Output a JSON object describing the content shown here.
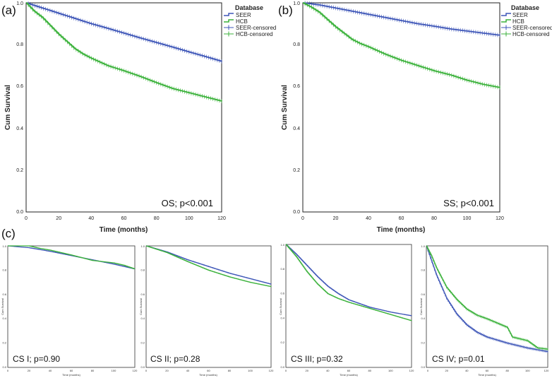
{
  "figure": {
    "panel_labels": [
      "(a)",
      "(b)",
      "(c)"
    ]
  },
  "colors": {
    "seer": "#3f57b8",
    "hcb": "#3cb23c"
  },
  "chart_data": [
    {
      "id": "a",
      "type": "line",
      "title": "(a)",
      "xlabel": "Time (months)",
      "ylabel": "Cum Survival",
      "xlim": [
        0,
        120
      ],
      "ylim": [
        0,
        1.0
      ],
      "xticks": [
        "0",
        "20",
        "40",
        "60",
        "80",
        "100",
        "120"
      ],
      "yticks": [
        "0.0",
        "0.2",
        "0.4",
        "0.6",
        "0.8",
        "1.0"
      ],
      "annotation": "OS; p<0.001",
      "legend": {
        "title": "Database",
        "items": [
          "SEER",
          "HCB",
          "SEER-censored",
          "HCB-censored"
        ],
        "position": "outside-right"
      },
      "series": [
        {
          "name": "SEER",
          "x": [
            0,
            10,
            20,
            30,
            40,
            50,
            60,
            70,
            80,
            90,
            100,
            110,
            120
          ],
          "values": [
            1.0,
            0.975,
            0.95,
            0.925,
            0.9,
            0.878,
            0.855,
            0.832,
            0.81,
            0.788,
            0.765,
            0.743,
            0.72
          ]
        },
        {
          "name": "HCB",
          "x": [
            0,
            5,
            10,
            15,
            20,
            25,
            30,
            35,
            40,
            50,
            60,
            70,
            80,
            90,
            100,
            110,
            120
          ],
          "values": [
            1.0,
            0.96,
            0.93,
            0.89,
            0.85,
            0.815,
            0.78,
            0.755,
            0.735,
            0.7,
            0.675,
            0.648,
            0.618,
            0.59,
            0.57,
            0.55,
            0.53
          ]
        }
      ]
    },
    {
      "id": "b",
      "type": "line",
      "title": "(b)",
      "xlabel": "Time (months)",
      "ylabel": "Cum Survival",
      "xlim": [
        0,
        120
      ],
      "ylim": [
        0,
        1.0
      ],
      "xticks": [
        "0",
        "20",
        "40",
        "60",
        "80",
        "100",
        "120"
      ],
      "yticks": [
        "0.0",
        "0.2",
        "0.4",
        "0.6",
        "0.8",
        "1.0"
      ],
      "annotation": "SS; p<0.001",
      "legend": {
        "title": "Database",
        "items": [
          "SEER",
          "HCB",
          "SEER-censored",
          "HCB-censored"
        ],
        "position": "outside-right"
      },
      "series": [
        {
          "name": "SEER",
          "x": [
            0,
            10,
            20,
            30,
            40,
            50,
            60,
            70,
            80,
            90,
            100,
            110,
            120
          ],
          "values": [
            1.0,
            0.99,
            0.975,
            0.96,
            0.945,
            0.93,
            0.915,
            0.9,
            0.888,
            0.875,
            0.865,
            0.855,
            0.845
          ]
        },
        {
          "name": "HCB",
          "x": [
            0,
            5,
            10,
            15,
            20,
            25,
            30,
            35,
            40,
            50,
            60,
            70,
            80,
            90,
            100,
            110,
            120
          ],
          "values": [
            1.0,
            0.98,
            0.955,
            0.92,
            0.885,
            0.855,
            0.825,
            0.805,
            0.79,
            0.755,
            0.725,
            0.7,
            0.675,
            0.655,
            0.63,
            0.61,
            0.595
          ]
        }
      ]
    },
    {
      "id": "c1",
      "type": "line",
      "title": "(c)",
      "xlabel": "Time (months)",
      "ylabel": "Cum Survival",
      "xlim": [
        0,
        120
      ],
      "ylim": [
        0,
        1.0
      ],
      "xticks": [
        "0",
        "20",
        "40",
        "60",
        "80",
        "100",
        "120"
      ],
      "yticks": [
        "0.0",
        "0.2",
        "0.4",
        "0.6",
        "0.8",
        "1.0"
      ],
      "annotation": "CS I; p=0.90",
      "series": [
        {
          "name": "SEER",
          "x": [
            0,
            20,
            40,
            60,
            80,
            100,
            120
          ],
          "values": [
            1.0,
            0.985,
            0.955,
            0.92,
            0.885,
            0.85,
            0.81
          ]
        },
        {
          "name": "HCB",
          "x": [
            0,
            20,
            30,
            40,
            60,
            80,
            100,
            110,
            120
          ],
          "values": [
            1.0,
            1.0,
            0.98,
            0.965,
            0.925,
            0.88,
            0.86,
            0.84,
            0.81
          ]
        }
      ]
    },
    {
      "id": "c2",
      "type": "line",
      "xlabel": "Time (months)",
      "ylabel": "Cum Survival",
      "xlim": [
        0,
        120
      ],
      "ylim": [
        0,
        1.0
      ],
      "xticks": [
        "0",
        "20",
        "40",
        "60",
        "80",
        "100",
        "120"
      ],
      "yticks": [
        "0.0",
        "0.2",
        "0.4",
        "0.6",
        "0.8",
        "1.0"
      ],
      "annotation": "CS II; p=0.28",
      "series": [
        {
          "name": "SEER",
          "x": [
            0,
            20,
            40,
            60,
            80,
            100,
            120
          ],
          "values": [
            1.0,
            0.95,
            0.885,
            0.83,
            0.775,
            0.73,
            0.685
          ]
        },
        {
          "name": "HCB",
          "x": [
            0,
            20,
            40,
            60,
            80,
            100,
            120
          ],
          "values": [
            1.0,
            0.945,
            0.87,
            0.8,
            0.745,
            0.7,
            0.665
          ]
        }
      ]
    },
    {
      "id": "c3",
      "type": "line",
      "xlabel": "Time (months)",
      "ylabel": "Cum Survival",
      "xlim": [
        0,
        120
      ],
      "ylim": [
        0,
        1.0
      ],
      "xticks": [
        "0",
        "20",
        "40",
        "60",
        "80",
        "100",
        "120"
      ],
      "yticks": [
        "0.0",
        "0.2",
        "0.4",
        "0.6",
        "0.8",
        "1.0"
      ],
      "annotation": "CS III; p=0.32",
      "series": [
        {
          "name": "SEER",
          "x": [
            0,
            10,
            20,
            30,
            40,
            50,
            60,
            80,
            100,
            120
          ],
          "values": [
            1.0,
            0.92,
            0.83,
            0.74,
            0.66,
            0.6,
            0.55,
            0.49,
            0.45,
            0.42
          ]
        },
        {
          "name": "HCB",
          "x": [
            0,
            10,
            20,
            30,
            40,
            50,
            60,
            80,
            100,
            120
          ],
          "values": [
            1.0,
            0.9,
            0.78,
            0.68,
            0.6,
            0.56,
            0.53,
            0.48,
            0.43,
            0.38
          ]
        }
      ]
    },
    {
      "id": "c4",
      "type": "line",
      "xlabel": "Time (months)",
      "ylabel": "Cum Survival",
      "xlim": [
        0,
        120
      ],
      "ylim": [
        0,
        1.0
      ],
      "xticks": [
        "0",
        "20",
        "40",
        "60",
        "80",
        "100",
        "120"
      ],
      "yticks": [
        "0.0",
        "0.2",
        "0.4",
        "0.6",
        "0.8",
        "1.0"
      ],
      "annotation": "CS IV; p=0.01",
      "series": [
        {
          "name": "SEER",
          "x": [
            0,
            5,
            10,
            20,
            30,
            40,
            50,
            60,
            80,
            100,
            120
          ],
          "values": [
            1.0,
            0.88,
            0.76,
            0.57,
            0.44,
            0.35,
            0.29,
            0.25,
            0.2,
            0.16,
            0.13
          ]
        },
        {
          "name": "HCB",
          "x": [
            0,
            5,
            10,
            20,
            30,
            40,
            50,
            60,
            80,
            85,
            100,
            110,
            120
          ],
          "values": [
            1.0,
            0.92,
            0.82,
            0.66,
            0.56,
            0.48,
            0.43,
            0.4,
            0.33,
            0.25,
            0.22,
            0.16,
            0.15
          ]
        }
      ]
    }
  ]
}
